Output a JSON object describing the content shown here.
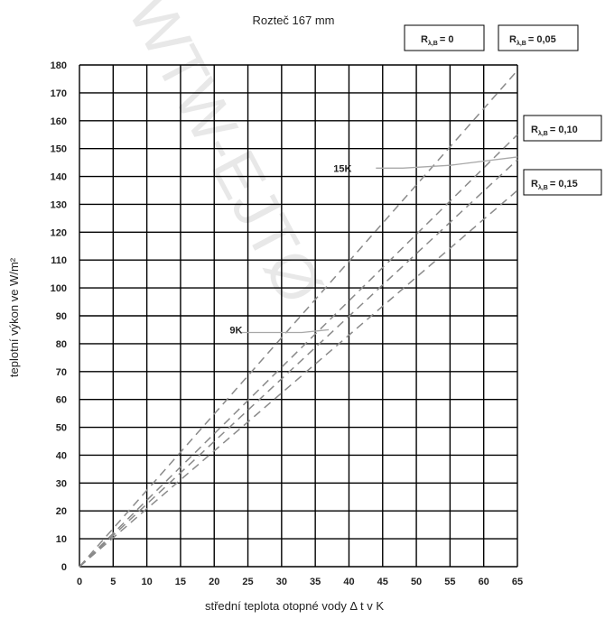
{
  "chart_data": {
    "type": "line",
    "title": "Rozteč 167 mm",
    "xlabel": "střední teplota otopné vody Δ t v K",
    "ylabel": "teplotní výkon ve W/m²",
    "xlim": [
      0,
      65
    ],
    "ylim": [
      0,
      180
    ],
    "xticks": [
      0,
      5,
      10,
      15,
      20,
      25,
      30,
      35,
      40,
      45,
      50,
      55,
      60,
      65
    ],
    "yticks": [
      0,
      10,
      20,
      30,
      40,
      50,
      60,
      70,
      80,
      90,
      100,
      110,
      120,
      130,
      140,
      150,
      160,
      170,
      180
    ],
    "grid": true,
    "series": [
      {
        "name": "R λ,B = 0",
        "x": [
          0,
          65
        ],
        "y": [
          0,
          178
        ]
      },
      {
        "name": "R λ,B = 0,05",
        "x": [
          0,
          65
        ],
        "y": [
          0,
          155
        ]
      },
      {
        "name": "R λ,B = 0,10",
        "x": [
          0,
          65
        ],
        "y": [
          0,
          146
        ]
      },
      {
        "name": "R λ,B = 0,15",
        "x": [
          0,
          65
        ],
        "y": [
          0,
          135
        ]
      }
    ],
    "limit_curves": [
      {
        "name": "9K",
        "x": [
          24,
          28,
          33,
          37
        ],
        "y": [
          84,
          84,
          84,
          85
        ]
      },
      {
        "name": "15K",
        "x": [
          44,
          48,
          55,
          65
        ],
        "y": [
          143,
          143,
          144,
          147
        ]
      }
    ],
    "annotations": [
      {
        "text": "9K",
        "x": 22.3,
        "y": 85
      },
      {
        "text": "15K",
        "x": 37.7,
        "y": 143
      }
    ],
    "legend_labels": [
      {
        "main": "R",
        "sub": "λ,B",
        "value": "= 0",
        "position": "top"
      },
      {
        "main": "R",
        "sub": "λ,B",
        "value": "= 0,05",
        "position": "top-right"
      },
      {
        "main": "R",
        "sub": "λ,B",
        "value": "= 0,10",
        "position": "right"
      },
      {
        "main": "R",
        "sub": "λ,B",
        "value": "= 0,15",
        "position": "right"
      }
    ]
  },
  "watermark": {
    "text": "WTW-EJTØ",
    "color": "#e6e6e6"
  },
  "colors": {
    "grid": "#000000",
    "series": "#8a8a8a",
    "limit": "#a8a8a8"
  }
}
